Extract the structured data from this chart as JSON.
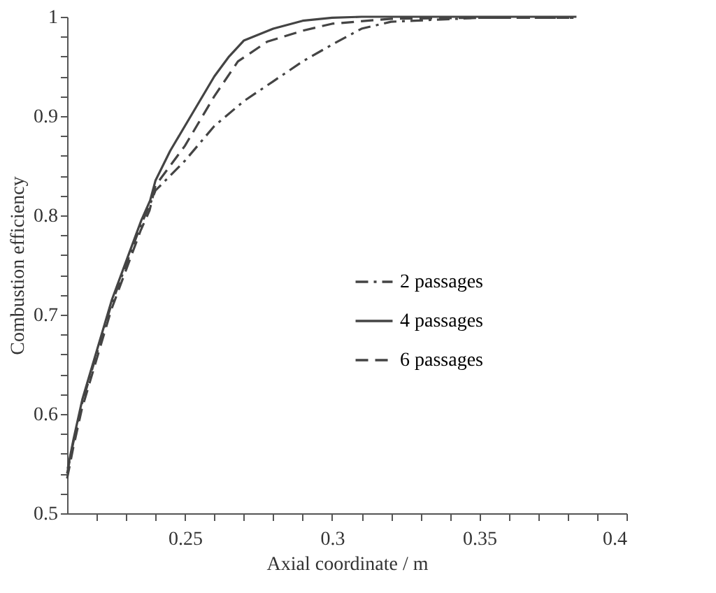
{
  "chart_data": {
    "type": "line",
    "xlabel": "Axial coordinate / m",
    "ylabel": "Combustion efficiency",
    "xlim": [
      0.21,
      0.4
    ],
    "ylim": [
      0.5,
      1
    ],
    "xticks": [
      {
        "value": 0.22,
        "label": null
      },
      {
        "value": 0.23,
        "label": null
      },
      {
        "value": 0.24,
        "label": null
      },
      0.25,
      {
        "value": 0.26,
        "label": null
      },
      {
        "value": 0.27,
        "label": null
      },
      {
        "value": 0.28,
        "label": null
      },
      {
        "value": 0.29,
        "label": null
      },
      0.3,
      {
        "value": 0.31,
        "label": null
      },
      {
        "value": 0.32,
        "label": null
      },
      {
        "value": 0.33,
        "label": null
      },
      {
        "value": 0.34,
        "label": null
      },
      0.35,
      {
        "value": 0.36,
        "label": null
      },
      {
        "value": 0.37,
        "label": null
      },
      {
        "value": 0.38,
        "label": null
      },
      {
        "value": 0.39,
        "label": null
      },
      0.4
    ],
    "yticks": [
      0.5,
      {
        "value": 0.52,
        "label": null
      },
      {
        "value": 0.54,
        "label": null
      },
      {
        "value": 0.56,
        "label": null
      },
      {
        "value": 0.58,
        "label": null
      },
      0.6,
      {
        "value": 0.62,
        "label": null
      },
      {
        "value": 0.64,
        "label": null
      },
      {
        "value": 0.66,
        "label": null
      },
      {
        "value": 0.68,
        "label": null
      },
      0.7,
      {
        "value": 0.72,
        "label": null
      },
      {
        "value": 0.74,
        "label": null
      },
      {
        "value": 0.76,
        "label": null
      },
      {
        "value": 0.78,
        "label": null
      },
      0.8,
      {
        "value": 0.82,
        "label": null
      },
      {
        "value": 0.84,
        "label": null
      },
      {
        "value": 0.86,
        "label": null
      },
      {
        "value": 0.88,
        "label": null
      },
      0.9,
      {
        "value": 0.92,
        "label": null
      },
      {
        "value": 0.94,
        "label": null
      },
      {
        "value": 0.96,
        "label": null
      },
      {
        "value": 0.98,
        "label": null
      },
      1
    ],
    "grid": false,
    "legend": "right",
    "marker": "none",
    "series": [
      {
        "name": "2 passages",
        "color": "#444444",
        "line_style": "dashdot",
        "x": [
          0.21,
          0.212,
          0.215,
          0.22,
          0.225,
          0.23,
          0.235,
          0.238,
          0.24,
          0.245,
          0.25,
          0.26,
          0.27,
          0.28,
          0.29,
          0.3,
          0.31,
          0.32,
          0.35,
          0.382
        ],
        "values": [
          0.54,
          0.57,
          0.61,
          0.66,
          0.71,
          0.75,
          0.79,
          0.81,
          0.825,
          0.84,
          0.855,
          0.89,
          0.915,
          0.935,
          0.955,
          0.972,
          0.988,
          0.995,
          0.999,
          0.999
        ]
      },
      {
        "name": "4 passages",
        "color": "#444444",
        "line_style": "solid",
        "x": [
          0.2102,
          0.2122,
          0.2152,
          0.2202,
          0.2252,
          0.2302,
          0.2352,
          0.2382,
          0.24,
          0.245,
          0.25,
          0.255,
          0.26,
          0.265,
          0.27,
          0.28,
          0.29,
          0.3,
          0.31,
          0.35,
          0.383
        ],
        "values": [
          0.545,
          0.575,
          0.615,
          0.665,
          0.715,
          0.755,
          0.795,
          0.815,
          0.835,
          0.865,
          0.89,
          0.915,
          0.94,
          0.96,
          0.976,
          0.988,
          0.996,
          0.999,
          1.0,
          1.0,
          1.0
        ]
      },
      {
        "name": "6 passages",
        "color": "#444444",
        "line_style": "dashed",
        "x": [
          0.21,
          0.212,
          0.215,
          0.22,
          0.225,
          0.23,
          0.235,
          0.238,
          0.24,
          0.245,
          0.25,
          0.255,
          0.26,
          0.268,
          0.278,
          0.29,
          0.3,
          0.32,
          0.35,
          0.381
        ],
        "values": [
          0.535,
          0.565,
          0.605,
          0.655,
          0.705,
          0.745,
          0.785,
          0.805,
          0.83,
          0.85,
          0.87,
          0.895,
          0.92,
          0.955,
          0.975,
          0.986,
          0.993,
          0.998,
          0.999,
          0.999
        ]
      }
    ]
  }
}
